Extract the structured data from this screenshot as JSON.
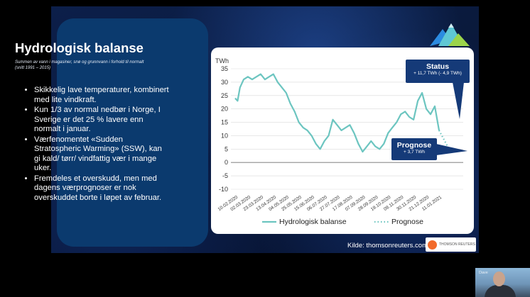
{
  "slide": {
    "title": "Hydrologisk balanse",
    "subtitle": "Summen av vann i magasiner, snø og grunnvann i forhold til normalt (snitt 1991 – 2015)",
    "bullets": [
      "Skikkelig lave temperaturer, kombinert med lite vindkraft.",
      "Kun 1/3 av normal nedbør i Norge, I Sverige er det 25 % lavere enn normalt i januar.",
      "Værfenomentet «Sudden Stratospheric Warming» (SSW), kan gi kald/ tørr/ vindfattig vær i mange uker.",
      "Fremdeles et overskudd, men med dagens værprognoser er nok overskuddet borte i løpet av februar."
    ],
    "source": "Kilde: thomsonreuters.com",
    "source_logo_text": "THOMSON REUTERS",
    "status_callout": {
      "title": "Status",
      "text": "+ 11,7 TWh (- 4,9 TWh)"
    },
    "forecast_callout": {
      "title": "Prognose",
      "text": "+ 3,7 TWh"
    }
  },
  "webcam": {
    "label": "Dave"
  },
  "colors": {
    "line": "#6cc5c0",
    "callout": "#153a78",
    "panel": "#0b3a6e"
  },
  "chart_data": {
    "type": "line",
    "ylabel": "TWh",
    "ylim": [
      -10,
      35
    ],
    "yticks": [
      35,
      30,
      25,
      20,
      15,
      10,
      5,
      0,
      -5,
      -10
    ],
    "x_ticks": [
      "10.02.2020",
      "02.03.2020",
      "23.03.2020",
      "13.04.2020",
      "04.05.2020",
      "25.05.2020",
      "15.06.2020",
      "06.07.2020",
      "27.07.2020",
      "17.08.2020",
      "07.09.2020",
      "28.09.2020",
      "19.10.2020",
      "09.11.2020",
      "30.11.2020",
      "21.12.2020",
      "11.01.2021"
    ],
    "x_start": "2020-02-10",
    "series": [
      {
        "name": "Hydrologisk balanse",
        "style": "solid",
        "x": [
          "2020-02-10",
          "2020-02-14",
          "2020-02-18",
          "2020-02-24",
          "2020-03-02",
          "2020-03-09",
          "2020-03-16",
          "2020-03-23",
          "2020-03-30",
          "2020-04-06",
          "2020-04-13",
          "2020-04-20",
          "2020-04-27",
          "2020-05-04",
          "2020-05-11",
          "2020-05-18",
          "2020-05-25",
          "2020-06-01",
          "2020-06-08",
          "2020-06-15",
          "2020-06-22",
          "2020-06-29",
          "2020-07-06",
          "2020-07-13",
          "2020-07-20",
          "2020-07-27",
          "2020-08-03",
          "2020-08-10",
          "2020-08-17",
          "2020-08-24",
          "2020-08-31",
          "2020-09-07",
          "2020-09-14",
          "2020-09-21",
          "2020-09-28",
          "2020-10-05",
          "2020-10-12",
          "2020-10-19",
          "2020-10-26",
          "2020-11-02",
          "2020-11-09",
          "2020-11-16",
          "2020-11-23",
          "2020-11-30",
          "2020-12-07",
          "2020-12-14",
          "2020-12-21",
          "2020-12-28",
          "2021-01-04",
          "2021-01-11"
        ],
        "values": [
          24,
          23,
          28,
          31,
          32,
          31,
          32,
          33,
          31,
          32,
          33,
          30,
          28,
          26,
          22,
          19,
          15,
          13,
          12,
          10,
          7,
          5,
          8,
          10,
          16,
          14,
          12,
          13,
          14,
          11,
          7,
          4,
          6,
          8,
          6,
          5,
          7,
          11,
          13,
          15,
          18,
          19,
          17,
          16,
          23,
          26,
          20,
          18,
          21,
          12
        ]
      },
      {
        "name": "Prognose",
        "style": "dotted",
        "x": [
          "2021-01-11",
          "2021-01-18",
          "2021-01-25",
          "2021-02-01"
        ],
        "values": [
          12,
          9,
          6,
          4
        ]
      }
    ],
    "legend": {
      "position": "bottom"
    }
  }
}
